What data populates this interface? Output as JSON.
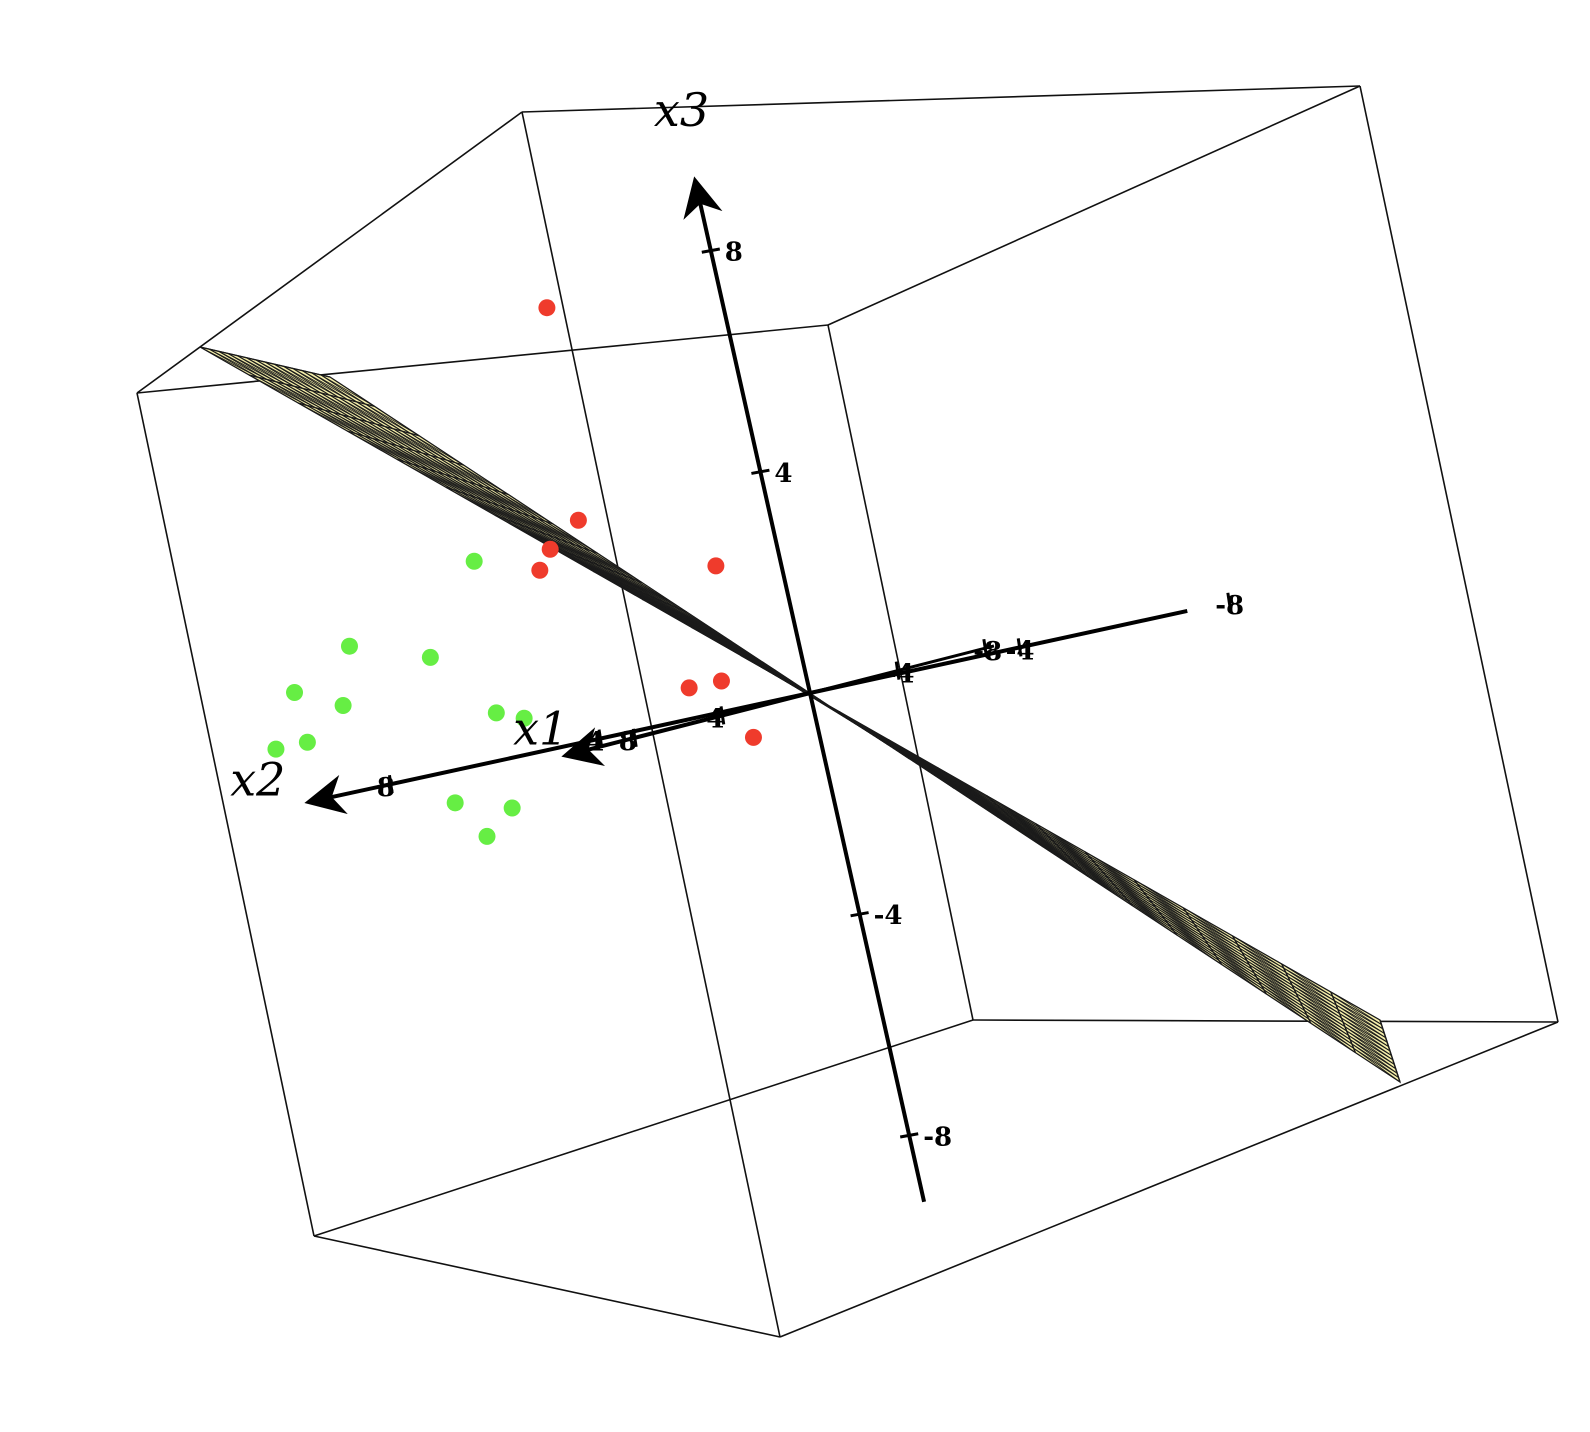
{
  "chart_data": {
    "type": "scatter3d",
    "axes": {
      "x1": {
        "label": "x1",
        "range": [
          -8,
          8
        ],
        "ticks": [
          4,
          8
        ]
      },
      "x2": {
        "label": "x2",
        "range": [
          -8,
          8
        ],
        "ticks": [
          4,
          8
        ]
      },
      "x3": {
        "label": "x3",
        "range": [
          -8,
          8
        ],
        "ticks": [
          -8,
          -4,
          4,
          8
        ]
      }
    },
    "series": [
      {
        "color": "#ef3b2c",
        "points": [
          [
            -2.1,
            4.1,
            7.6
          ],
          [
            -3.3,
            4.9,
            3.8
          ],
          [
            -3.7,
            5.7,
            3.4
          ],
          [
            -2.1,
            5.3,
            3.1
          ],
          [
            -3.1,
            2.5,
            2.5
          ],
          [
            -2.7,
            2.7,
            0.5
          ],
          [
            -2.9,
            3.4,
            0.5
          ],
          [
            -3.3,
            2.6,
            -0.6
          ]
        ]
      },
      {
        "color": "#66ee44",
        "points": [
          [
            -2.2,
            6.5,
            3.5
          ],
          [
            -2.4,
            9.2,
            2.5
          ],
          [
            -2.7,
            7.9,
            2.0
          ],
          [
            -2.9,
            10.6,
            1.9
          ],
          [
            -2.5,
            9.6,
            1.5
          ],
          [
            -2.4,
            6.8,
            0.8
          ],
          [
            -2.6,
            6.4,
            0.6
          ],
          [
            -2.5,
            10.4,
            1.0
          ],
          [
            -2.5,
            11.0,
            1.0
          ],
          [
            -2.6,
            8.0,
            -0.6
          ],
          [
            -2.4,
            6.9,
            -0.9
          ],
          [
            -2.7,
            7.6,
            -1.3
          ]
        ]
      }
    ],
    "surface": {
      "type": "plane",
      "color": "#f5efab",
      "x1_range": [
        -8,
        8
      ],
      "x2_range": [
        -8,
        8
      ]
    }
  }
}
